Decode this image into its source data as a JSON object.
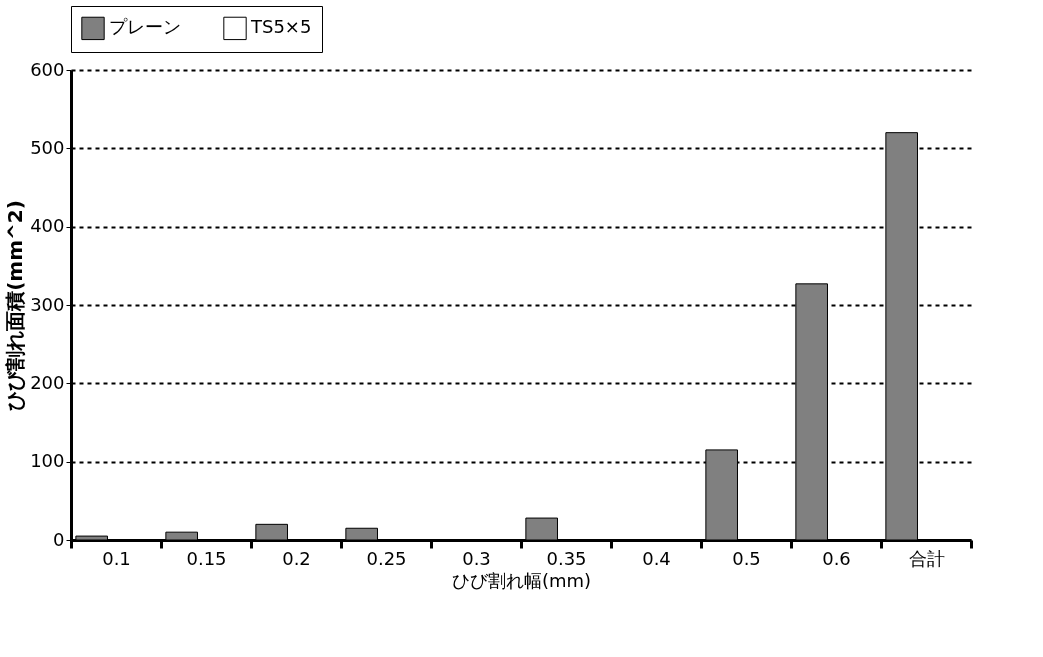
{
  "chart_data": {
    "type": "bar",
    "xlabel": "ひび割れ幅(mm)",
    "ylabel": "ひび割れ面積(mm^2)",
    "categories": [
      "0.1",
      "0.15",
      "0.2",
      "0.25",
      "0.3",
      "0.35",
      "0.4",
      "0.5",
      "0.6",
      "合計"
    ],
    "series": [
      {
        "name": "プレーン",
        "color": "#808080",
        "values": [
          5,
          10,
          20,
          15,
          null,
          28,
          null,
          115,
          327,
          520
        ]
      },
      {
        "name": "TS5×5",
        "color": "#ffffff",
        "values": [
          null,
          null,
          null,
          null,
          null,
          null,
          null,
          null,
          null,
          null
        ]
      }
    ],
    "ylim": [
      0,
      600
    ],
    "yticks": [
      0,
      100,
      200,
      300,
      400,
      500,
      600
    ],
    "grid": "y",
    "legend": "top"
  }
}
